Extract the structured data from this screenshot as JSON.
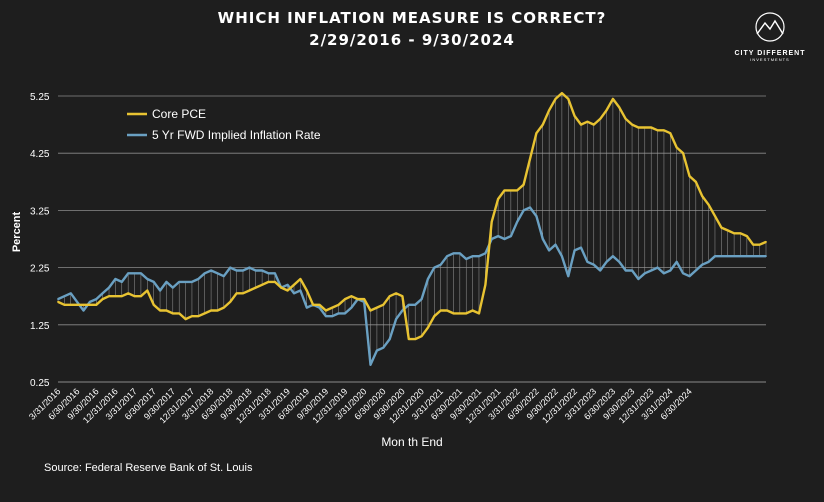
{
  "header": {
    "title": "WHICH INFLATION MEASURE IS CORRECT?",
    "subtitle": "2/29/2016 - 9/30/2024"
  },
  "logo": {
    "name": "CITY DIFFERENT",
    "tagline": "INVESTMENTS",
    "icon": "mountain-icon"
  },
  "source": "Source: Federal Reserve Bank of St. Louis",
  "colors": {
    "background": "#1e1e1e",
    "core_pce": "#e8c332",
    "fwd_rate": "#6aa0c2",
    "grid": "#8a8a8a"
  },
  "chart_data": {
    "type": "line",
    "title": "",
    "xlabel": "Mon th End",
    "ylabel": "Percent",
    "ylim": [
      0.25,
      5.25
    ],
    "yticks": [
      "0.25",
      "1.25",
      "2.25",
      "3.25",
      "4.25",
      "5.25"
    ],
    "x_tick_labels": [
      "3/31/2016",
      "6/30/2016",
      "9/30/2016",
      "12/31/2016",
      "3/31/2017",
      "6/30/2017",
      "9/30/2017",
      "12/31/2017",
      "3/31/2018",
      "6/30/2018",
      "9/30/2018",
      "12/31/2018",
      "3/31/2019",
      "6/30/2019",
      "9/30/2019",
      "12/31/2019",
      "3/31/2020",
      "6/30/2020",
      "9/30/2020",
      "12/31/2020",
      "3/31/2021",
      "6/30/2021",
      "9/30/2021",
      "12/31/2021",
      "3/31/2022",
      "6/30/2022",
      "9/30/2022",
      "12/31/2022",
      "3/31/2023",
      "6/30/2023",
      "9/30/2023",
      "12/31/2023",
      "3/31/2024",
      "6/30/2024"
    ],
    "legend_position": "top-left",
    "grid": true,
    "series": [
      {
        "name": "Core PCE",
        "values": [
          1.65,
          1.6,
          1.6,
          1.6,
          1.6,
          1.6,
          1.6,
          1.7,
          1.75,
          1.75,
          1.75,
          1.8,
          1.75,
          1.75,
          1.85,
          1.6,
          1.5,
          1.5,
          1.45,
          1.45,
          1.35,
          1.4,
          1.4,
          1.45,
          1.5,
          1.5,
          1.55,
          1.65,
          1.8,
          1.8,
          1.85,
          1.9,
          1.95,
          2.0,
          2.0,
          1.9,
          1.85,
          1.95,
          2.05,
          1.85,
          1.6,
          1.6,
          1.5,
          1.55,
          1.6,
          1.7,
          1.75,
          1.7,
          1.7,
          1.5,
          1.55,
          1.6,
          1.75,
          1.8,
          1.75,
          1.0,
          1.0,
          1.05,
          1.2,
          1.4,
          1.5,
          1.5,
          1.45,
          1.45,
          1.45,
          1.5,
          1.45,
          1.95,
          3.05,
          3.45,
          3.6,
          3.6,
          3.6,
          3.7,
          4.15,
          4.6,
          4.75,
          5.0,
          5.2,
          5.3,
          5.2,
          4.9,
          4.75,
          4.8,
          4.75,
          4.85,
          5.0,
          5.2,
          5.05,
          4.85,
          4.75,
          4.7,
          4.7,
          4.7,
          4.65,
          4.65,
          4.6,
          4.35,
          4.25,
          3.85,
          3.75,
          3.5,
          3.35,
          3.15,
          2.95,
          2.9,
          2.85,
          2.85,
          2.8,
          2.65,
          2.65,
          2.7
        ]
      },
      {
        "name": "5 Yr FWD Implied Inflation Rate",
        "values": [
          1.7,
          1.75,
          1.8,
          1.65,
          1.5,
          1.65,
          1.7,
          1.8,
          1.9,
          2.05,
          2.0,
          2.15,
          2.15,
          2.15,
          2.05,
          2.0,
          1.85,
          2.0,
          1.9,
          2.0,
          2.0,
          2.0,
          2.05,
          2.15,
          2.2,
          2.15,
          2.1,
          2.25,
          2.2,
          2.2,
          2.25,
          2.2,
          2.2,
          2.15,
          2.15,
          1.9,
          1.95,
          1.8,
          1.85,
          1.55,
          1.6,
          1.55,
          1.4,
          1.4,
          1.45,
          1.45,
          1.55,
          1.7,
          1.65,
          0.55,
          0.8,
          0.85,
          1.0,
          1.35,
          1.5,
          1.6,
          1.6,
          1.7,
          2.05,
          2.25,
          2.3,
          2.45,
          2.5,
          2.5,
          2.4,
          2.45,
          2.45,
          2.5,
          2.75,
          2.8,
          2.75,
          2.8,
          3.05,
          3.25,
          3.3,
          3.15,
          2.75,
          2.55,
          2.65,
          2.45,
          2.1,
          2.55,
          2.6,
          2.35,
          2.3,
          2.2,
          2.35,
          2.45,
          2.35,
          2.2,
          2.2,
          2.05,
          2.15,
          2.2,
          2.25,
          2.15,
          2.2,
          2.35,
          2.15,
          2.1,
          2.2,
          2.3,
          2.35,
          2.45,
          2.45,
          2.45,
          2.45,
          2.45,
          2.45,
          2.45,
          2.45,
          2.45
        ]
      }
    ]
  }
}
